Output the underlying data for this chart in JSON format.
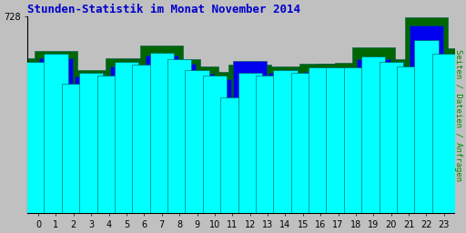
{
  "title": "Stunden-Statistik im Monat November 2014",
  "title_color": "#0000CC",
  "background_color": "#C0C0C0",
  "plot_bg_color": "#C0C0C0",
  "ylabel": "Seiten / Dateien / Anfragen",
  "ylabel_color": "#008800",
  "xlabel_values": [
    0,
    1,
    2,
    3,
    4,
    5,
    6,
    7,
    8,
    9,
    10,
    11,
    12,
    13,
    14,
    15,
    16,
    17,
    18,
    19,
    20,
    21,
    22,
    23
  ],
  "ymax": 728,
  "ytick_label": "728",
  "bar_width": 0.75,
  "seiten": [
    560,
    590,
    480,
    520,
    510,
    560,
    550,
    595,
    570,
    530,
    510,
    430,
    520,
    510,
    530,
    520,
    540,
    540,
    540,
    580,
    560,
    545,
    640,
    590
  ],
  "dateien": [
    545,
    575,
    465,
    505,
    495,
    545,
    535,
    585,
    555,
    515,
    495,
    415,
    565,
    490,
    520,
    505,
    525,
    525,
    525,
    570,
    545,
    530,
    695,
    575
  ],
  "anfragen": [
    575,
    600,
    490,
    530,
    520,
    575,
    570,
    620,
    570,
    545,
    525,
    450,
    550,
    535,
    545,
    535,
    555,
    555,
    558,
    615,
    572,
    560,
    725,
    612
  ],
  "bar_color_seiten": "#00FFFF",
  "bar_color_dateien": "#0000EE",
  "bar_color_anfragen": "#006600",
  "bar_edge_color": "#005555"
}
